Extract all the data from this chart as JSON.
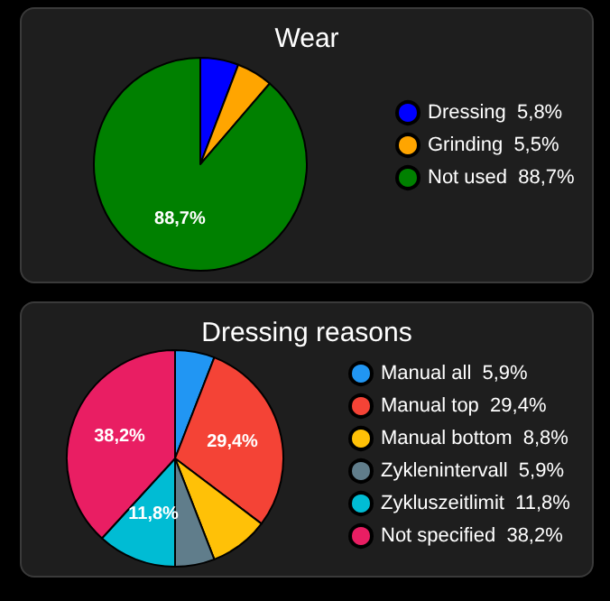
{
  "chart_data": [
    {
      "type": "pie",
      "title": "Wear",
      "categories": [
        "Dressing",
        "Grinding",
        "Not used"
      ],
      "values": [
        5.8,
        5.5,
        88.7
      ],
      "value_labels": [
        "5,8%",
        "5,5%",
        "88,7%"
      ],
      "colors": [
        "#0000ff",
        "#ffa500",
        "#008000"
      ],
      "legend": "right"
    },
    {
      "type": "pie",
      "title": "Dressing reasons",
      "categories": [
        "Manual all",
        "Manual top",
        "Manual bottom",
        "Zyklenintervall",
        "Zykluszeitlimit",
        "Not specified"
      ],
      "values": [
        5.9,
        29.4,
        8.8,
        5.9,
        11.8,
        38.2
      ],
      "value_labels": [
        "5,9%",
        "29,4%",
        "8,8%",
        "5,9%",
        "11,8%",
        "38,2%"
      ],
      "colors": [
        "#2196f3",
        "#f44336",
        "#ffc107",
        "#607d8b",
        "#00bcd4",
        "#e91e63"
      ],
      "legend": "right"
    }
  ]
}
